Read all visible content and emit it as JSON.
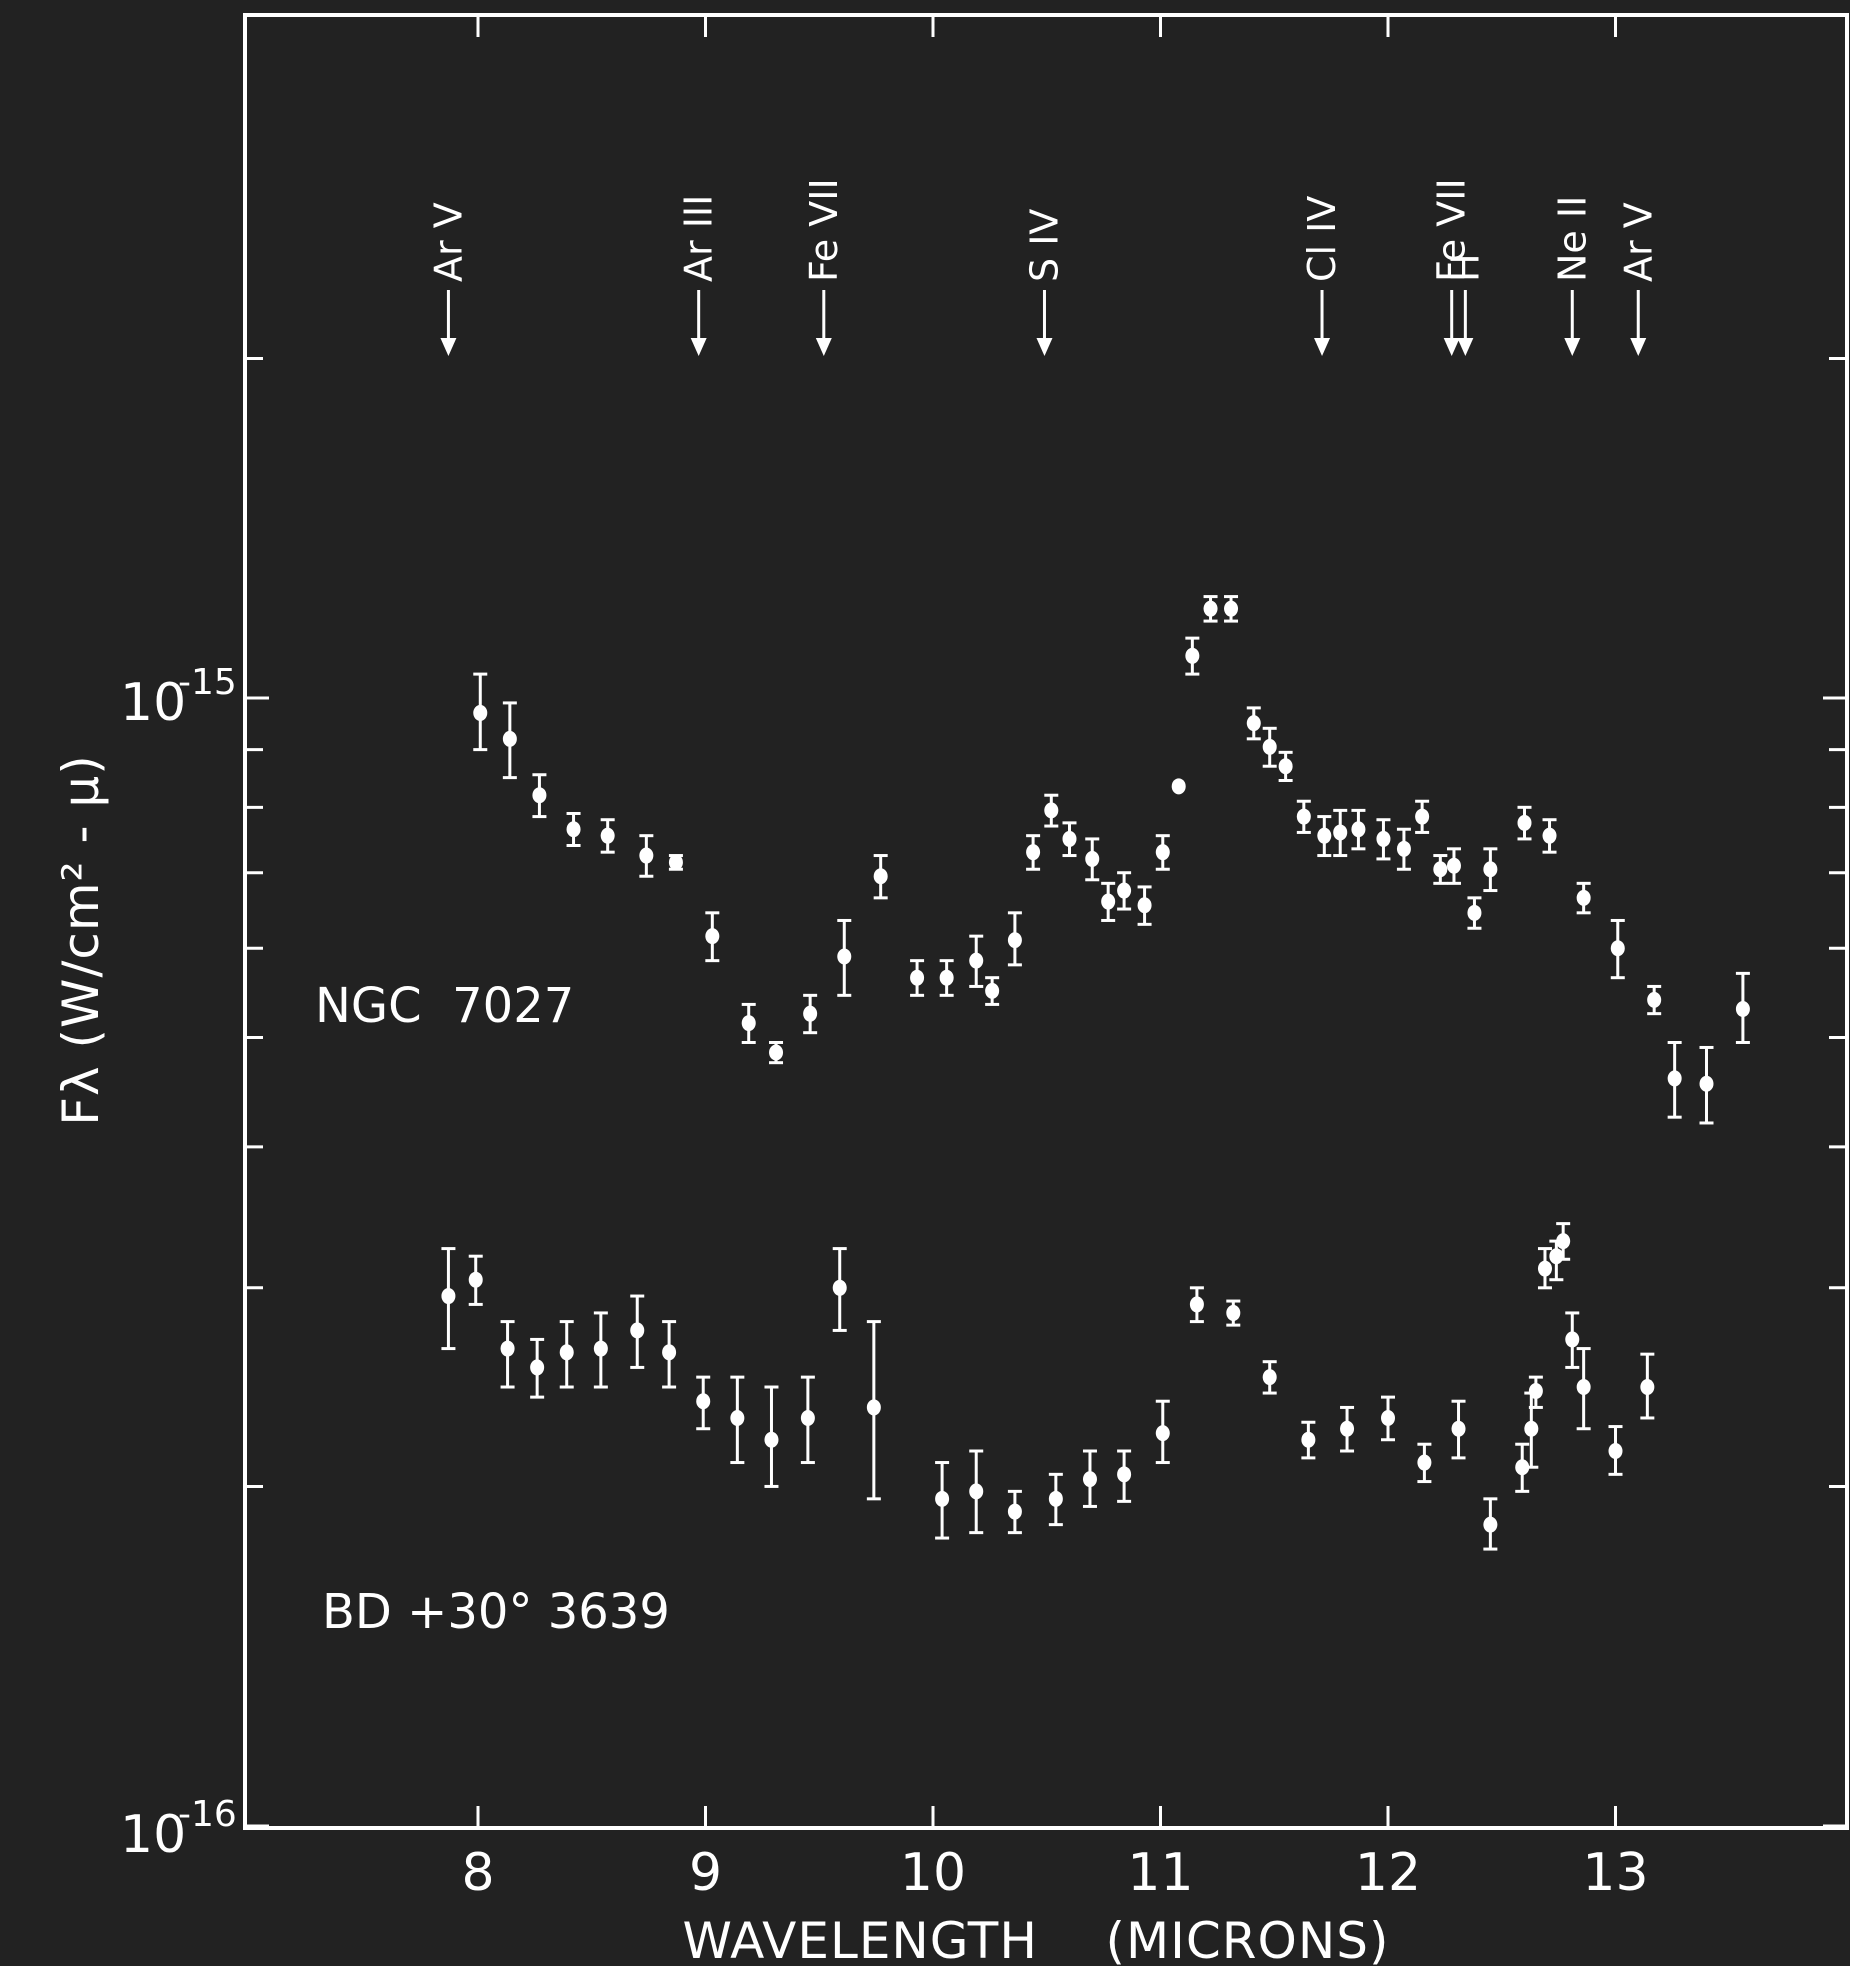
{
  "chart_data": {
    "type": "scatter",
    "xlabel": "WAVELENGTH    (MICRONS)",
    "ylabel": "Fλ (W/cm² - μ)",
    "xlim": [
      7.1,
      14.0
    ],
    "ylim": [
      1e-16,
      2.3e-15
    ],
    "y_scale": "log",
    "x_ticks": [
      8,
      9,
      10,
      11,
      12,
      13
    ],
    "x_tick_labels": [
      "8",
      "9",
      "10",
      "11",
      "12",
      "13"
    ],
    "y_tick_labels": [
      {
        "value": 1e-15,
        "base": "10",
        "exp": "-15"
      },
      {
        "value": 1e-16,
        "base": "10",
        "exp": "-16"
      }
    ],
    "minor_y_ticks": [
      2e-16,
      3e-16,
      4e-16,
      5e-16,
      6e-16,
      7e-16,
      8e-16,
      9e-16,
      2e-15
    ],
    "lines": [
      {
        "x": 7.87,
        "ion": "Ar",
        "stage": "V"
      },
      {
        "x": 8.97,
        "ion": "Ar",
        "stage": "III"
      },
      {
        "x": 9.52,
        "ion": "Fe",
        "stage": "VII"
      },
      {
        "x": 10.49,
        "ion": "S",
        "stage": "IV"
      },
      {
        "x": 11.71,
        "ion": "Cl",
        "stage": "IV"
      },
      {
        "x": 12.28,
        "ion": "Fe",
        "stage": "VII"
      },
      {
        "x": 12.34,
        "ion": "H",
        "stage": ""
      },
      {
        "x": 12.81,
        "ion": "Ne",
        "stage": "II"
      },
      {
        "x": 13.1,
        "ion": "Ar",
        "stage": "V"
      }
    ],
    "series": [
      {
        "name": "NGC  7027",
        "points": [
          {
            "x": 8.01,
            "y": 9.7e-16,
            "lo": 9e-16,
            "hi": 1.05e-15
          },
          {
            "x": 8.14,
            "y": 9.2e-16,
            "lo": 8.5e-16,
            "hi": 9.9e-16
          },
          {
            "x": 8.27,
            "y": 8.2e-16,
            "lo": 7.85e-16,
            "hi": 8.55e-16
          },
          {
            "x": 8.42,
            "y": 7.65e-16,
            "lo": 7.4e-16,
            "hi": 7.9e-16
          },
          {
            "x": 8.57,
            "y": 7.55e-16,
            "lo": 7.3e-16,
            "hi": 7.8e-16
          },
          {
            "x": 8.74,
            "y": 7.25e-16,
            "lo": 6.95e-16,
            "hi": 7.55e-16
          },
          {
            "x": 8.87,
            "y": 7.15e-16,
            "lo": 7.05e-16,
            "hi": 7.25e-16
          },
          {
            "x": 9.03,
            "y": 6.15e-16,
            "lo": 5.85e-16,
            "hi": 6.45e-16
          },
          {
            "x": 9.19,
            "y": 5.15e-16,
            "lo": 4.95e-16,
            "hi": 5.35e-16
          },
          {
            "x": 9.31,
            "y": 4.85e-16,
            "lo": 4.75e-16,
            "hi": 4.95e-16
          },
          {
            "x": 9.46,
            "y": 5.25e-16,
            "lo": 5.05e-16,
            "hi": 5.45e-16
          },
          {
            "x": 9.61,
            "y": 5.9e-16,
            "lo": 5.45e-16,
            "hi": 6.35e-16
          },
          {
            "x": 9.77,
            "y": 6.95e-16,
            "lo": 6.65e-16,
            "hi": 7.25e-16
          },
          {
            "x": 9.93,
            "y": 5.65e-16,
            "lo": 5.45e-16,
            "hi": 5.85e-16
          },
          {
            "x": 10.06,
            "y": 5.65e-16,
            "lo": 5.45e-16,
            "hi": 5.85e-16
          },
          {
            "x": 10.19,
            "y": 5.85e-16,
            "lo": 5.55e-16,
            "hi": 6.15e-16
          },
          {
            "x": 10.26,
            "y": 5.5e-16,
            "lo": 5.35e-16,
            "hi": 5.65e-16
          },
          {
            "x": 10.36,
            "y": 6.1e-16,
            "lo": 5.8e-16,
            "hi": 6.45e-16
          },
          {
            "x": 10.44,
            "y": 7.3e-16,
            "lo": 7.05e-16,
            "hi": 7.55e-16
          },
          {
            "x": 10.52,
            "y": 7.95e-16,
            "lo": 7.7e-16,
            "hi": 8.2e-16
          },
          {
            "x": 10.6,
            "y": 7.5e-16,
            "lo": 7.25e-16,
            "hi": 7.75e-16
          },
          {
            "x": 10.7,
            "y": 7.2e-16,
            "lo": 6.9e-16,
            "hi": 7.5e-16
          },
          {
            "x": 10.77,
            "y": 6.6e-16,
            "lo": 6.35e-16,
            "hi": 6.85e-16
          },
          {
            "x": 10.84,
            "y": 6.75e-16,
            "lo": 6.5e-16,
            "hi": 7e-16
          },
          {
            "x": 10.93,
            "y": 6.55e-16,
            "lo": 6.3e-16,
            "hi": 6.8e-16
          },
          {
            "x": 11.01,
            "y": 7.3e-16,
            "lo": 7.05e-16,
            "hi": 7.55e-16
          },
          {
            "x": 11.08,
            "y": 8.35e-16
          },
          {
            "x": 11.14,
            "y": 1.09e-15,
            "lo": 1.05e-15,
            "hi": 1.13e-15
          },
          {
            "x": 11.22,
            "y": 1.2e-15,
            "lo": 1.17e-15,
            "hi": 1.23e-15
          },
          {
            "x": 11.31,
            "y": 1.2e-15,
            "lo": 1.17e-15,
            "hi": 1.23e-15
          },
          {
            "x": 11.41,
            "y": 9.5e-16,
            "lo": 9.2e-16,
            "hi": 9.8e-16
          },
          {
            "x": 11.48,
            "y": 9.05e-16,
            "lo": 8.7e-16,
            "hi": 9.4e-16
          },
          {
            "x": 11.55,
            "y": 8.7e-16,
            "lo": 8.45e-16,
            "hi": 8.95e-16
          },
          {
            "x": 11.63,
            "y": 7.85e-16,
            "lo": 7.6e-16,
            "hi": 8.1e-16
          },
          {
            "x": 11.72,
            "y": 7.55e-16,
            "lo": 7.25e-16,
            "hi": 7.85e-16
          },
          {
            "x": 11.79,
            "y": 7.6e-16,
            "lo": 7.25e-16,
            "hi": 7.95e-16
          },
          {
            "x": 11.87,
            "y": 7.65e-16,
            "lo": 7.35e-16,
            "hi": 7.95e-16
          },
          {
            "x": 11.98,
            "y": 7.5e-16,
            "lo": 7.2e-16,
            "hi": 7.8e-16
          },
          {
            "x": 12.07,
            "y": 7.35e-16,
            "lo": 7.05e-16,
            "hi": 7.65e-16
          },
          {
            "x": 12.15,
            "y": 7.85e-16,
            "lo": 7.6e-16,
            "hi": 8.1e-16
          },
          {
            "x": 12.23,
            "y": 7.05e-16,
            "lo": 6.85e-16,
            "hi": 7.25e-16
          },
          {
            "x": 12.29,
            "y": 7.1e-16,
            "lo": 6.85e-16,
            "hi": 7.35e-16
          },
          {
            "x": 12.38,
            "y": 6.45e-16,
            "lo": 6.25e-16,
            "hi": 6.65e-16
          },
          {
            "x": 12.45,
            "y": 7.05e-16,
            "lo": 6.75e-16,
            "hi": 7.35e-16
          },
          {
            "x": 12.6,
            "y": 7.75e-16,
            "lo": 7.5e-16,
            "hi": 8e-16
          },
          {
            "x": 12.71,
            "y": 7.55e-16,
            "lo": 7.3e-16,
            "hi": 7.8e-16
          },
          {
            "x": 12.86,
            "y": 6.65e-16,
            "lo": 6.45e-16,
            "hi": 6.85e-16
          },
          {
            "x": 13.01,
            "y": 6e-16,
            "lo": 5.65e-16,
            "hi": 6.35e-16
          },
          {
            "x": 13.17,
            "y": 5.4e-16,
            "lo": 5.25e-16,
            "hi": 5.55e-16
          },
          {
            "x": 13.26,
            "y": 4.6e-16,
            "lo": 4.25e-16,
            "hi": 4.95e-16
          },
          {
            "x": 13.4,
            "y": 4.55e-16,
            "lo": 4.2e-16,
            "hi": 4.9e-16
          },
          {
            "x": 13.56,
            "y": 5.3e-16,
            "lo": 4.95e-16,
            "hi": 5.7e-16
          }
        ]
      },
      {
        "name": "BD +30° 3639",
        "points": [
          {
            "x": 7.87,
            "y": 2.95e-16,
            "lo": 2.65e-16,
            "hi": 3.25e-16
          },
          {
            "x": 7.99,
            "y": 3.05e-16,
            "lo": 2.9e-16,
            "hi": 3.2e-16
          },
          {
            "x": 8.13,
            "y": 2.65e-16,
            "lo": 2.45e-16,
            "hi": 2.8e-16
          },
          {
            "x": 8.26,
            "y": 2.55e-16,
            "lo": 2.4e-16,
            "hi": 2.7e-16
          },
          {
            "x": 8.39,
            "y": 2.63e-16,
            "lo": 2.45e-16,
            "hi": 2.8e-16
          },
          {
            "x": 8.54,
            "y": 2.65e-16,
            "lo": 2.45e-16,
            "hi": 2.85e-16
          },
          {
            "x": 8.7,
            "y": 2.75e-16,
            "lo": 2.55e-16,
            "hi": 2.95e-16
          },
          {
            "x": 8.84,
            "y": 2.63e-16,
            "lo": 2.45e-16,
            "hi": 2.8e-16
          },
          {
            "x": 8.99,
            "y": 2.38e-16,
            "lo": 2.25e-16,
            "hi": 2.5e-16
          },
          {
            "x": 9.14,
            "y": 2.3e-16,
            "lo": 2.1e-16,
            "hi": 2.5e-16
          },
          {
            "x": 9.29,
            "y": 2.2e-16,
            "lo": 2e-16,
            "hi": 2.45e-16
          },
          {
            "x": 9.45,
            "y": 2.3e-16,
            "lo": 2.1e-16,
            "hi": 2.5e-16
          },
          {
            "x": 9.59,
            "y": 3e-16,
            "lo": 2.75e-16,
            "hi": 3.25e-16
          },
          {
            "x": 9.74,
            "y": 2.35e-16,
            "lo": 1.95e-16,
            "hi": 2.8e-16
          },
          {
            "x": 10.04,
            "y": 1.95e-16,
            "lo": 1.8e-16,
            "hi": 2.1e-16
          },
          {
            "x": 10.19,
            "y": 1.98e-16,
            "lo": 1.82e-16,
            "hi": 2.15e-16
          },
          {
            "x": 10.36,
            "y": 1.9e-16,
            "lo": 1.82e-16,
            "hi": 1.98e-16
          },
          {
            "x": 10.54,
            "y": 1.95e-16,
            "lo": 1.85e-16,
            "hi": 2.05e-16
          },
          {
            "x": 10.69,
            "y": 2.03e-16,
            "lo": 1.92e-16,
            "hi": 2.15e-16
          },
          {
            "x": 10.84,
            "y": 2.05e-16,
            "lo": 1.94e-16,
            "hi": 2.15e-16
          },
          {
            "x": 11.01,
            "y": 2.23e-16,
            "lo": 2.1e-16,
            "hi": 2.38e-16
          },
          {
            "x": 11.16,
            "y": 2.9e-16,
            "lo": 2.8e-16,
            "hi": 3e-16
          },
          {
            "x": 11.32,
            "y": 2.85e-16,
            "lo": 2.78e-16,
            "hi": 2.92e-16
          },
          {
            "x": 11.48,
            "y": 2.5e-16,
            "lo": 2.42e-16,
            "hi": 2.58e-16
          },
          {
            "x": 11.65,
            "y": 2.2e-16,
            "lo": 2.12e-16,
            "hi": 2.28e-16
          },
          {
            "x": 11.82,
            "y": 2.25e-16,
            "lo": 2.15e-16,
            "hi": 2.35e-16
          },
          {
            "x": 12.0,
            "y": 2.3e-16,
            "lo": 2.2e-16,
            "hi": 2.4e-16
          },
          {
            "x": 12.16,
            "y": 2.1e-16,
            "lo": 2.02e-16,
            "hi": 2.18e-16
          },
          {
            "x": 12.31,
            "y": 2.25e-16,
            "lo": 2.12e-16,
            "hi": 2.38e-16
          },
          {
            "x": 12.45,
            "y": 1.85e-16,
            "lo": 1.76e-16,
            "hi": 1.95e-16
          },
          {
            "x": 12.59,
            "y": 2.08e-16,
            "lo": 1.98e-16,
            "hi": 2.18e-16
          },
          {
            "x": 12.63,
            "y": 2.25e-16,
            "lo": 2.08e-16,
            "hi": 2.42e-16
          },
          {
            "x": 12.65,
            "y": 2.43e-16,
            "lo": 2.35e-16,
            "hi": 2.5e-16
          },
          {
            "x": 12.69,
            "y": 3.12e-16,
            "lo": 3e-16,
            "hi": 3.25e-16
          },
          {
            "x": 12.74,
            "y": 3.2e-16,
            "lo": 3.05e-16,
            "hi": 3.3e-16
          },
          {
            "x": 12.77,
            "y": 3.3e-16,
            "lo": 3.18e-16,
            "hi": 3.42e-16
          },
          {
            "x": 12.81,
            "y": 2.7e-16,
            "lo": 2.55e-16,
            "hi": 2.85e-16
          },
          {
            "x": 12.86,
            "y": 2.45e-16,
            "lo": 2.25e-16,
            "hi": 2.65e-16
          },
          {
            "x": 13.0,
            "y": 2.15e-16,
            "lo": 2.05e-16,
            "hi": 2.26e-16
          },
          {
            "x": 13.14,
            "y": 2.45e-16,
            "lo": 2.3e-16,
            "hi": 2.62e-16
          }
        ]
      }
    ]
  }
}
